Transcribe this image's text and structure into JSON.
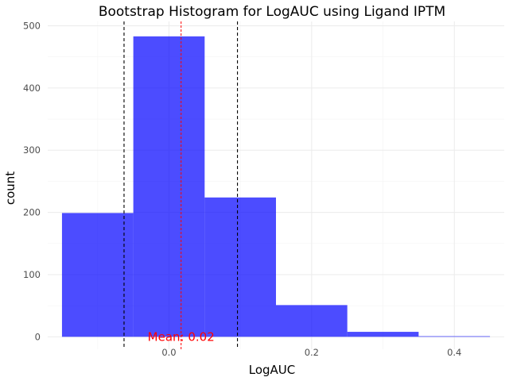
{
  "chart_data": {
    "type": "bar",
    "title": "Bootstrap Histogram for LogAUC using Ligand IPTM",
    "xlabel": "LogAUC",
    "ylabel": "count",
    "bins": [
      {
        "x0": -0.15,
        "x1": -0.05,
        "count": 199
      },
      {
        "x0": -0.05,
        "x1": 0.05,
        "count": 483
      },
      {
        "x0": 0.05,
        "x1": 0.15,
        "count": 224
      },
      {
        "x0": 0.15,
        "x1": 0.25,
        "count": 51
      },
      {
        "x0": 0.25,
        "x1": 0.35,
        "count": 8
      },
      {
        "x0": 0.35,
        "x1": 0.45,
        "count": 1
      }
    ],
    "xlim": [
      -0.17,
      0.47
    ],
    "ylim": [
      -20,
      507
    ],
    "x_ticks": [
      0.0,
      0.2,
      0.4
    ],
    "x_tick_labels": [
      "0.0",
      "0.2",
      "0.4"
    ],
    "y_ticks": [
      0,
      100,
      200,
      300,
      400,
      500
    ],
    "y_tick_labels": [
      "0",
      "100",
      "200",
      "300",
      "400",
      "500"
    ],
    "mean_line": {
      "value": 0.017,
      "color": "#ff0000",
      "style": "dashed"
    },
    "ci_lines": [
      {
        "value": -0.063,
        "color": "#000000",
        "style": "dashed"
      },
      {
        "value": 0.096,
        "color": "#000000",
        "style": "dashed"
      }
    ],
    "annotation": {
      "text": "Mean: 0.02",
      "x": 0.017,
      "y": 0,
      "color": "#ff0000"
    },
    "bar_color": "#0000ff",
    "bar_opacity": 0.7,
    "grid": true,
    "grid_color": "#ebebeb"
  }
}
